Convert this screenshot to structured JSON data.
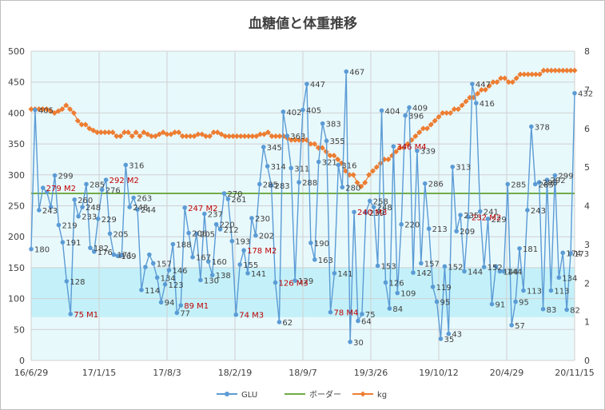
{
  "chart_data": {
    "type": "line",
    "title": "血糖値と体重推移",
    "x_tick_labels": [
      "16/6/29",
      "17/1/15",
      "17/8/3",
      "18/2/19",
      "18/9/7",
      "19/3/26",
      "19/10/12",
      "20/4/29",
      "20/11/15"
    ],
    "y_left": {
      "min": 0,
      "max": 500,
      "step": 50
    },
    "y_right": {
      "min": 0,
      "max": 8,
      "step": 1
    },
    "band_high": 150,
    "band_low": 70,
    "grid": true,
    "legend_position": "bottom",
    "series": [
      {
        "name": "GLU",
        "color": "#5b9bd5",
        "values": [
          180,
          405,
          243,
          279,
          272,
          248,
          299,
          219,
          191,
          128,
          75,
          260,
          233,
          248,
          285,
          182,
          176,
          229,
          276,
          292,
          205,
          171,
          169,
          170,
          316,
          248,
          263,
          244,
          114,
          151,
          171,
          157,
          134,
          94,
          123,
          146,
          188,
          77,
          89,
          247,
          206,
          167,
          205,
          130,
          237,
          160,
          138,
          220,
          212,
          270,
          261,
          193,
          74,
          155,
          178,
          141,
          230,
          202,
          285,
          345,
          314,
          283,
          126,
          62,
          402,
          363,
          311,
          129,
          288,
          405,
          447,
          190,
          163,
          321,
          383,
          355,
          78,
          141,
          316,
          280,
          467,
          30,
          240,
          64,
          75,
          239,
          258,
          248,
          153,
          404,
          126,
          84,
          346,
          109,
          220,
          396,
          409,
          142,
          339,
          157,
          286,
          213,
          119,
          95,
          35,
          152,
          43,
          313,
          209,
          235,
          144,
          232,
          447,
          416,
          241,
          151,
          229,
          91,
          152,
          144,
          144,
          285,
          57,
          95,
          181,
          113,
          243,
          378,
          285,
          288,
          83,
          292,
          113,
          299,
          134,
          174,
          82,
          173,
          432
        ]
      },
      {
        "name": "ボーダー",
        "color": "#70ad47",
        "values": [
          270
        ]
      },
      {
        "name": "kg",
        "color": "#ed7d31",
        "values": [
          6.5,
          6.5,
          6.5,
          6.5,
          6.5,
          6.45,
          6.4,
          6.45,
          6.5,
          6.6,
          6.5,
          6.4,
          6.2,
          6.1,
          6.1,
          6.0,
          5.95,
          5.9,
          5.9,
          5.9,
          5.9,
          5.9,
          5.8,
          5.8,
          5.9,
          5.9,
          5.8,
          5.9,
          5.8,
          5.9,
          5.85,
          5.8,
          5.8,
          5.85,
          5.9,
          5.85,
          5.85,
          5.9,
          5.9,
          5.8,
          5.8,
          5.8,
          5.8,
          5.85,
          5.85,
          5.8,
          5.8,
          5.9,
          5.9,
          5.85,
          5.8,
          5.8,
          5.8,
          5.8,
          5.8,
          5.8,
          5.8,
          5.8,
          5.8,
          5.85,
          5.85,
          5.9,
          5.8,
          5.8,
          5.8,
          5.8,
          5.75,
          5.7,
          5.7,
          5.7,
          5.7,
          5.7,
          5.6,
          5.6,
          5.5,
          5.5,
          5.4,
          5.3,
          5.3,
          5.2,
          5.1,
          4.9,
          4.8,
          4.8,
          4.6,
          4.5,
          4.6,
          4.8,
          4.9,
          5.0,
          5.1,
          5.2,
          5.2,
          5.3,
          5.4,
          5.5,
          5.5,
          5.6,
          5.7,
          5.8,
          5.9,
          6.0,
          6.0,
          6.1,
          6.2,
          6.3,
          6.4,
          6.4,
          6.4,
          6.5,
          6.5,
          6.6,
          6.7,
          6.8,
          6.8,
          6.9,
          7.0,
          7.0,
          7.1,
          7.2,
          7.2,
          7.3,
          7.3,
          7.2,
          7.2,
          7.3,
          7.4,
          7.4,
          7.4,
          7.4,
          7.4,
          7.4,
          7.5,
          7.5,
          7.5,
          7.5,
          7.5,
          7.5,
          7.5,
          7.5,
          7.5
        ]
      }
    ],
    "data_labels": [
      {
        "index": 0,
        "text": "180"
      },
      {
        "index": 1,
        "text": "405"
      },
      {
        "index": 2,
        "text": "243"
      },
      {
        "index": 6,
        "text": "299"
      },
      {
        "index": 7,
        "text": "219"
      },
      {
        "index": 8,
        "text": "191"
      },
      {
        "index": 9,
        "text": "128"
      },
      {
        "index": 11,
        "text": "260"
      },
      {
        "index": 12,
        "text": "233"
      },
      {
        "index": 13,
        "text": "248"
      },
      {
        "index": 14,
        "text": "285"
      },
      {
        "index": 15,
        "text": "182"
      },
      {
        "index": 16,
        "text": "176"
      },
      {
        "index": 17,
        "text": "229"
      },
      {
        "index": 18,
        "text": "276"
      },
      {
        "index": 20,
        "text": "205"
      },
      {
        "index": 21,
        "text": "171"
      },
      {
        "index": 22,
        "text": "169"
      },
      {
        "index": 24,
        "text": "316"
      },
      {
        "index": 25,
        "text": "248"
      },
      {
        "index": 26,
        "text": "263"
      },
      {
        "index": 27,
        "text": "244"
      },
      {
        "index": 28,
        "text": "114"
      },
      {
        "index": 31,
        "text": "157"
      },
      {
        "index": 32,
        "text": "134"
      },
      {
        "index": 33,
        "text": "94"
      },
      {
        "index": 34,
        "text": "123"
      },
      {
        "index": 35,
        "text": "146"
      },
      {
        "index": 36,
        "text": "188"
      },
      {
        "index": 37,
        "text": "77"
      },
      {
        "index": 40,
        "text": "206"
      },
      {
        "index": 41,
        "text": "167"
      },
      {
        "index": 42,
        "text": "205"
      },
      {
        "index": 43,
        "text": "130"
      },
      {
        "index": 44,
        "text": "237"
      },
      {
        "index": 45,
        "text": "160"
      },
      {
        "index": 46,
        "text": "138"
      },
      {
        "index": 47,
        "text": "220"
      },
      {
        "index": 48,
        "text": "212"
      },
      {
        "index": 49,
        "text": "270"
      },
      {
        "index": 50,
        "text": "261"
      },
      {
        "index": 51,
        "text": "193"
      },
      {
        "index": 53,
        "text": "155"
      },
      {
        "index": 55,
        "text": "141"
      },
      {
        "index": 56,
        "text": "230"
      },
      {
        "index": 57,
        "text": "202"
      },
      {
        "index": 58,
        "text": "285"
      },
      {
        "index": 59,
        "text": "345"
      },
      {
        "index": 60,
        "text": "314"
      },
      {
        "index": 61,
        "text": "283"
      },
      {
        "index": 63,
        "text": "62"
      },
      {
        "index": 64,
        "text": "402"
      },
      {
        "index": 65,
        "text": "363"
      },
      {
        "index": 66,
        "text": "311"
      },
      {
        "index": 67,
        "text": "129"
      },
      {
        "index": 68,
        "text": "288"
      },
      {
        "index": 69,
        "text": "405"
      },
      {
        "index": 70,
        "text": "447"
      },
      {
        "index": 71,
        "text": "190"
      },
      {
        "index": 72,
        "text": "163"
      },
      {
        "index": 73,
        "text": "321"
      },
      {
        "index": 74,
        "text": "383"
      },
      {
        "index": 75,
        "text": "355"
      },
      {
        "index": 77,
        "text": "141"
      },
      {
        "index": 78,
        "text": "316"
      },
      {
        "index": 79,
        "text": "280"
      },
      {
        "index": 80,
        "text": "467"
      },
      {
        "index": 81,
        "text": "30"
      },
      {
        "index": 83,
        "text": "64"
      },
      {
        "index": 84,
        "text": "75"
      },
      {
        "index": 85,
        "text": "239"
      },
      {
        "index": 86,
        "text": "258"
      },
      {
        "index": 87,
        "text": "248"
      },
      {
        "index": 88,
        "text": "153"
      },
      {
        "index": 89,
        "text": "404"
      },
      {
        "index": 90,
        "text": "126"
      },
      {
        "index": 91,
        "text": "84"
      },
      {
        "index": 93,
        "text": "109"
      },
      {
        "index": 94,
        "text": "220"
      },
      {
        "index": 95,
        "text": "396"
      },
      {
        "index": 96,
        "text": "409"
      },
      {
        "index": 97,
        "text": "142"
      },
      {
        "index": 98,
        "text": "339"
      },
      {
        "index": 99,
        "text": "157"
      },
      {
        "index": 100,
        "text": "286"
      },
      {
        "index": 101,
        "text": "213"
      },
      {
        "index": 102,
        "text": "119"
      },
      {
        "index": 103,
        "text": "95"
      },
      {
        "index": 104,
        "text": "35"
      },
      {
        "index": 105,
        "text": "152"
      },
      {
        "index": 106,
        "text": "43"
      },
      {
        "index": 107,
        "text": "313"
      },
      {
        "index": 108,
        "text": "209"
      },
      {
        "index": 109,
        "text": "235"
      },
      {
        "index": 110,
        "text": "144"
      },
      {
        "index": 112,
        "text": "447"
      },
      {
        "index": 113,
        "text": "416"
      },
      {
        "index": 114,
        "text": "241"
      },
      {
        "index": 115,
        "text": "152"
      },
      {
        "index": 116,
        "text": "229"
      },
      {
        "index": 117,
        "text": "91"
      },
      {
        "index": 119,
        "text": "144"
      },
      {
        "index": 120,
        "text": "144"
      },
      {
        "index": 121,
        "text": "285"
      },
      {
        "index": 122,
        "text": "57"
      },
      {
        "index": 123,
        "text": "95"
      },
      {
        "index": 124,
        "text": "181"
      },
      {
        "index": 125,
        "text": "113"
      },
      {
        "index": 126,
        "text": "243"
      },
      {
        "index": 127,
        "text": "378"
      },
      {
        "index": 128,
        "text": "285"
      },
      {
        "index": 129,
        "text": "288"
      },
      {
        "index": 130,
        "text": "83"
      },
      {
        "index": 131,
        "text": "292"
      },
      {
        "index": 132,
        "text": "113"
      },
      {
        "index": 133,
        "text": "299"
      },
      {
        "index": 134,
        "text": "134"
      },
      {
        "index": 135,
        "text": "174"
      },
      {
        "index": 136,
        "text": "82"
      },
      {
        "index": 137,
        "text": "173"
      },
      {
        "index": 138,
        "text": "432"
      }
    ],
    "annotations": [
      {
        "index": 3,
        "text": "279 M2"
      },
      {
        "index": 10,
        "text": "75 M1"
      },
      {
        "index": 19,
        "text": "292 M2"
      },
      {
        "index": 38,
        "text": "89 M1"
      },
      {
        "index": 39,
        "text": "247 M2"
      },
      {
        "index": 52,
        "text": "74 M3"
      },
      {
        "index": 54,
        "text": "178 M2"
      },
      {
        "index": 62,
        "text": "126 M3"
      },
      {
        "index": 76,
        "text": "78 M4"
      },
      {
        "index": 82,
        "text": "240 M3"
      },
      {
        "index": 92,
        "text": "346 M4"
      },
      {
        "index": 111,
        "text": "232 M2"
      }
    ]
  }
}
